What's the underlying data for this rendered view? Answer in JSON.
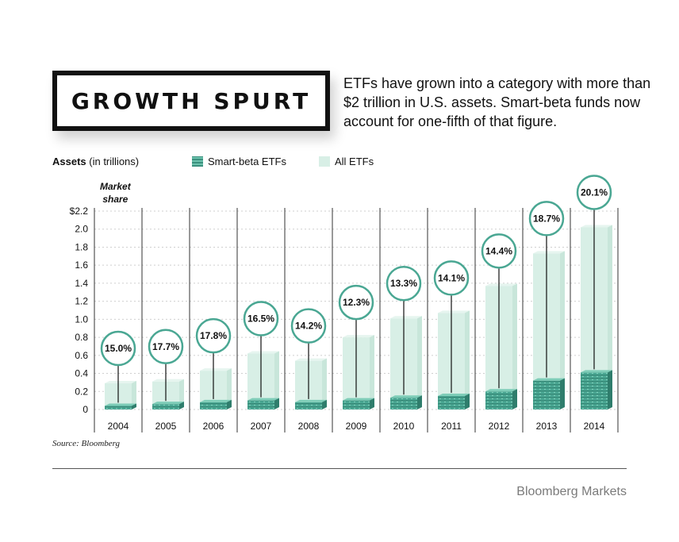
{
  "header": {
    "title": "GROWTH SPURT",
    "subtitle": "ETFs have grown into a category with more than $2 trillion in U.S. assets. Smart-beta funds now account for one-fifth of that figure."
  },
  "legend": {
    "assets_label": "Assets",
    "assets_unit": "(in trillions)",
    "smart_label": "Smart-beta ETFs",
    "all_label": "All ETFs",
    "market_share_line1": "Market",
    "market_share_line2": "share"
  },
  "colors": {
    "all_etfs": "#d8efe6",
    "smart_beta": "#4aa793",
    "circle_stroke": "#4aa793"
  },
  "footer": {
    "source": "Source: Bloomberg",
    "brand": "Bloomberg Markets"
  },
  "chart_data": {
    "type": "bar",
    "categories": [
      "2004",
      "2005",
      "2006",
      "2007",
      "2008",
      "2009",
      "2010",
      "2011",
      "2012",
      "2013",
      "2014"
    ],
    "series": [
      {
        "name": "All ETFs",
        "values": [
          0.29,
          0.31,
          0.43,
          0.62,
          0.54,
          0.8,
          1.01,
          1.07,
          1.37,
          1.73,
          2.02
        ]
      },
      {
        "name": "Smart-beta ETFs",
        "values": [
          0.04,
          0.06,
          0.08,
          0.1,
          0.08,
          0.1,
          0.13,
          0.15,
          0.2,
          0.32,
          0.41
        ]
      }
    ],
    "market_share": [
      "15.0%",
      "17.7%",
      "17.8%",
      "16.5%",
      "14.2%",
      "12.3%",
      "13.3%",
      "14.1%",
      "14.4%",
      "18.7%",
      "20.1%"
    ],
    "yticks": [
      "0",
      "0.2",
      "0.4",
      "0.6",
      "0.8",
      "1.0",
      "1.2",
      "1.4",
      "1.6",
      "1.8",
      "2.0",
      "$2.2"
    ],
    "ylim": [
      0,
      2.2
    ],
    "grid": true
  }
}
